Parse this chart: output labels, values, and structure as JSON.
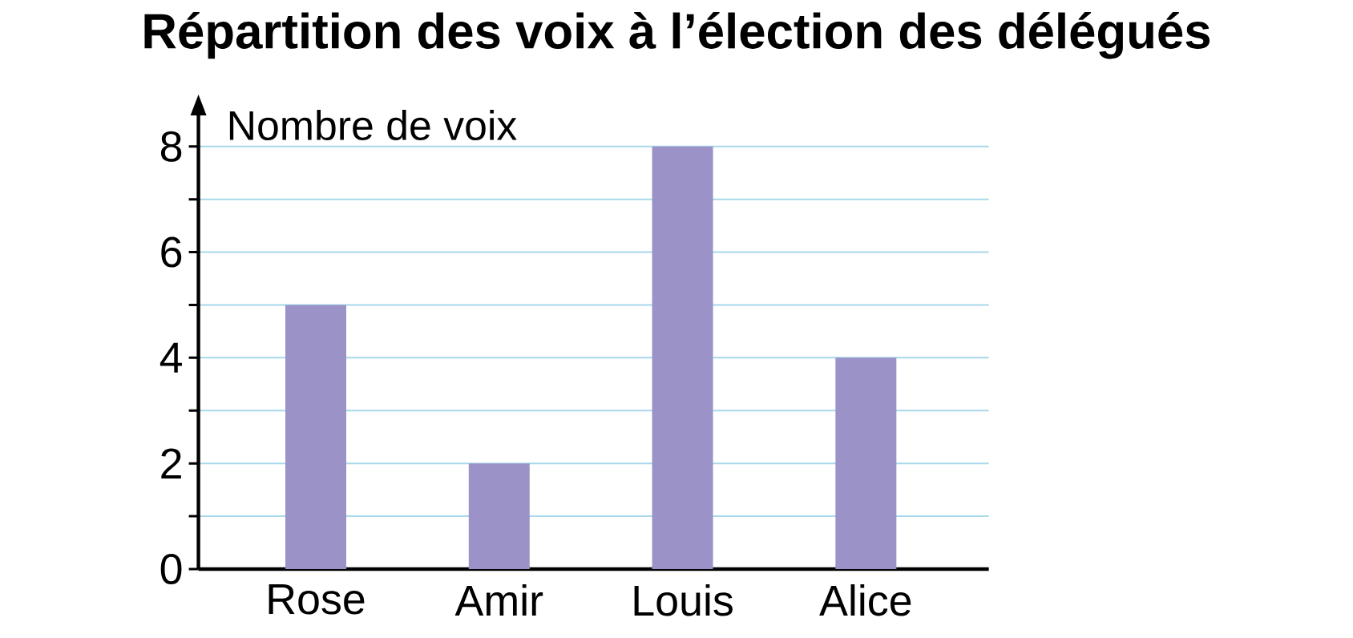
{
  "chart_data": {
    "type": "bar",
    "title": "Répartition des voix à l’élection des délégués",
    "ylabel": "Nombre de voix",
    "categories": [
      "Rose",
      "Amir",
      "Louis",
      "Alice"
    ],
    "values": [
      5,
      2,
      8,
      4
    ],
    "color": "#9b92c8",
    "ylim": [
      0,
      8.8
    ],
    "yticks": [
      0,
      {
        "value": 1,
        "label": null
      },
      2,
      {
        "value": 3,
        "label": null
      },
      4,
      {
        "value": 5,
        "label": null
      },
      6,
      {
        "value": 7,
        "label": null
      },
      8
    ],
    "grid": "y"
  }
}
